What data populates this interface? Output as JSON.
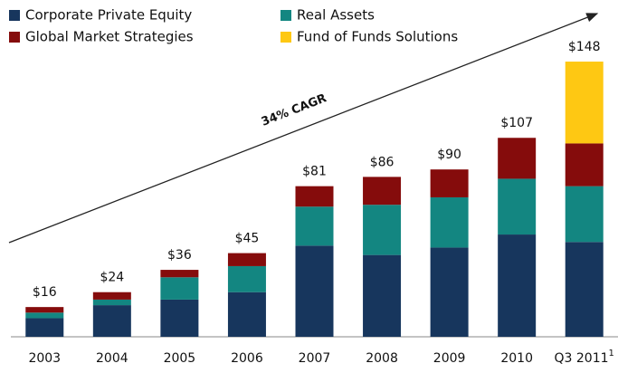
{
  "chart_data": {
    "type": "stacked_bar",
    "categories": [
      "2003",
      "2004",
      "2005",
      "2006",
      "2007",
      "2008",
      "2009",
      "2010",
      "Q3 2011"
    ],
    "footnote_marker": "1",
    "series": [
      {
        "name": "Corporate Private Equity",
        "color": "#17365d",
        "values": [
          10,
          17,
          20,
          24,
          49,
          44,
          48,
          55,
          51
        ]
      },
      {
        "name": "Real Assets",
        "color": "#138681",
        "values": [
          3,
          3,
          12,
          14,
          21,
          27,
          27,
          30,
          30
        ]
      },
      {
        "name": "Global Market Strategies",
        "color": "#850c0c",
        "values": [
          3,
          4,
          4,
          7,
          11,
          15,
          15,
          22,
          23
        ]
      },
      {
        "name": "Fund of Funds Solutions",
        "color": "#fec813",
        "values": [
          0,
          0,
          0,
          0,
          0,
          0,
          0,
          0,
          44
        ]
      }
    ],
    "totals": [
      16,
      24,
      36,
      45,
      81,
      86,
      90,
      107,
      148
    ],
    "total_labels": [
      "$16",
      "$24",
      "$36",
      "$45",
      "$81",
      "$86",
      "$90",
      "$107",
      "$148"
    ],
    "annotation": "34% CAGR",
    "ylim": [
      0,
      160
    ]
  }
}
